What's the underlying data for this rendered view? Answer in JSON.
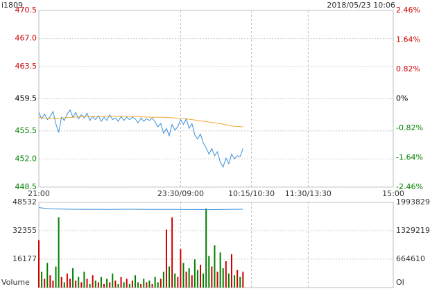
{
  "chart_data": [
    {
      "type": "line",
      "title": "i1809",
      "subtitle": "2018/05/23 10:06",
      "xlim": [
        0,
        375
      ],
      "xticks": [
        {
          "value": 0,
          "label": "21:00"
        },
        {
          "value": 150,
          "label": "23:30/09:00"
        },
        {
          "value": 225,
          "label": "10:15/10:30"
        },
        {
          "value": 285,
          "label": "11:30/13:30"
        },
        {
          "value": 375,
          "label": "15:00"
        }
      ],
      "ylim": [
        448.5,
        470.5
      ],
      "yticks": [
        470.5,
        {
          "value": 467,
          "label": "467.0"
        },
        463.5,
        459.5,
        455.5,
        {
          "value": 452,
          "label": "452.0"
        },
        448.5
      ],
      "y2lim": [
        -2.46,
        2.46
      ],
      "y2ticks": [
        {
          "value": 2.46,
          "label": "2.46%"
        },
        {
          "value": 1.64,
          "label": "1.64%"
        },
        {
          "value": 0.82,
          "label": "0.82%"
        },
        {
          "value": 0,
          "label": "0%"
        },
        {
          "value": -0.82,
          "label": "-0.82%"
        },
        {
          "value": -1.64,
          "label": "-1.64%"
        },
        {
          "value": -2.46,
          "label": "-2.46%"
        }
      ],
      "up_color": "#cc0000",
      "down_color": "#008000",
      "grid": true,
      "series": [
        {
          "color": "#3a8fd8",
          "x": [
            0,
            3,
            6,
            9,
            12,
            15,
            18,
            21,
            24,
            27,
            30,
            33,
            36,
            39,
            42,
            45,
            48,
            51,
            54,
            57,
            60,
            63,
            66,
            69,
            72,
            75,
            78,
            81,
            84,
            87,
            90,
            93,
            96,
            99,
            102,
            105,
            108,
            111,
            114,
            117,
            120,
            123,
            126,
            129,
            132,
            135,
            138,
            141,
            144,
            147,
            150,
            153,
            156,
            159,
            162,
            165,
            168,
            171,
            174,
            177,
            180,
            183,
            186,
            189,
            192,
            195,
            198,
            201,
            204,
            207,
            210,
            213,
            216
          ],
          "values": [
            457.8,
            457.0,
            457.6,
            456.9,
            457.3,
            457.9,
            456.4,
            455.3,
            457.2,
            456.8,
            457.6,
            458.1,
            457.2,
            457.8,
            457.0,
            457.5,
            457.1,
            457.7,
            456.8,
            457.3,
            456.9,
            457.4,
            456.7,
            457.2,
            456.8,
            457.5,
            456.9,
            457.1,
            456.7,
            457.3,
            456.8,
            457.2,
            456.9,
            457.2,
            457.0,
            456.5,
            457.1,
            456.7,
            457.0,
            456.8,
            457.1,
            456.6,
            456.0,
            456.4,
            455.2,
            455.8,
            454.9,
            456.3,
            455.6,
            456.0,
            456.9,
            456.3,
            457.0,
            455.8,
            456.4,
            455.0,
            454.5,
            455.1,
            454.0,
            453.4,
            452.6,
            453.3,
            452.4,
            452.9,
            451.6,
            451.0,
            452.1,
            451.4,
            452.6,
            452.0,
            452.4,
            452.3,
            453.3
          ]
        },
        {
          "color": "#f0a830",
          "x": [
            0,
            12,
            24,
            36,
            48,
            60,
            72,
            84,
            96,
            108,
            120,
            132,
            144,
            156,
            168,
            180,
            192,
            204,
            216
          ],
          "values": [
            457.2,
            457.0,
            457.1,
            457.2,
            457.3,
            457.3,
            457.3,
            457.3,
            457.3,
            457.25,
            457.2,
            457.2,
            457.1,
            457.0,
            456.8,
            456.6,
            456.4,
            456.1,
            456.0
          ]
        }
      ]
    },
    {
      "type": "bar",
      "ylabel": "Volume",
      "y2label": "OI",
      "xlim": [
        0,
        375
      ],
      "ylim": [
        0,
        48532
      ],
      "yticks": [
        16177,
        32355,
        48532
      ],
      "y2lim": [
        0,
        1993829
      ],
      "y2ticks": [
        664610,
        1329219,
        1993829
      ],
      "grid": true,
      "series": [
        {
          "x": [
            0,
            3,
            6,
            9,
            12,
            15,
            18,
            21,
            24,
            27,
            30,
            33,
            36,
            39,
            42,
            45,
            48,
            51,
            54,
            57,
            60,
            63,
            66,
            69,
            72,
            75,
            78,
            81,
            84,
            87,
            90,
            93,
            96,
            99,
            102,
            105,
            108,
            111,
            114,
            117,
            120,
            123,
            126,
            129,
            132,
            135,
            138,
            141,
            144,
            147,
            150,
            153,
            156,
            159,
            162,
            165,
            168,
            171,
            174,
            177,
            180,
            183,
            186,
            189,
            192,
            195,
            198,
            201,
            204,
            207,
            210,
            213,
            216
          ],
          "values": [
            27000,
            9000,
            5000,
            14000,
            7000,
            4000,
            12000,
            40000,
            6000,
            3000,
            8000,
            5000,
            11000,
            4000,
            6000,
            3000,
            9000,
            5000,
            2000,
            7000,
            4000,
            3000,
            6000,
            2000,
            5000,
            3000,
            8000,
            4000,
            2000,
            6000,
            3000,
            5000,
            2000,
            4000,
            7000,
            3000,
            2000,
            5000,
            3000,
            4000,
            2000,
            6000,
            3000,
            5000,
            9000,
            33000,
            12000,
            40000,
            8000,
            6000,
            22000,
            14000,
            9000,
            11000,
            7000,
            16000,
            10000,
            13000,
            8000,
            45000,
            18000,
            12000,
            24000,
            9000,
            20000,
            11000,
            15000,
            8000,
            19000,
            7000,
            10000,
            6000,
            9000
          ]
        },
        {
          "type": "line",
          "axis": "y2",
          "color": "#3a8fd8",
          "x": [
            0,
            12,
            24,
            36,
            48,
            60,
            72,
            84,
            96,
            108,
            120,
            132,
            144,
            156,
            168,
            180,
            192,
            204,
            216
          ],
          "values": [
            1870000,
            1840000,
            1835000,
            1832000,
            1830000,
            1830000,
            1829000,
            1830000,
            1831000,
            1830000,
            1829000,
            1828000,
            1827000,
            1826000,
            1825000,
            1822000,
            1826000,
            1830000,
            1831000
          ]
        }
      ]
    }
  ]
}
